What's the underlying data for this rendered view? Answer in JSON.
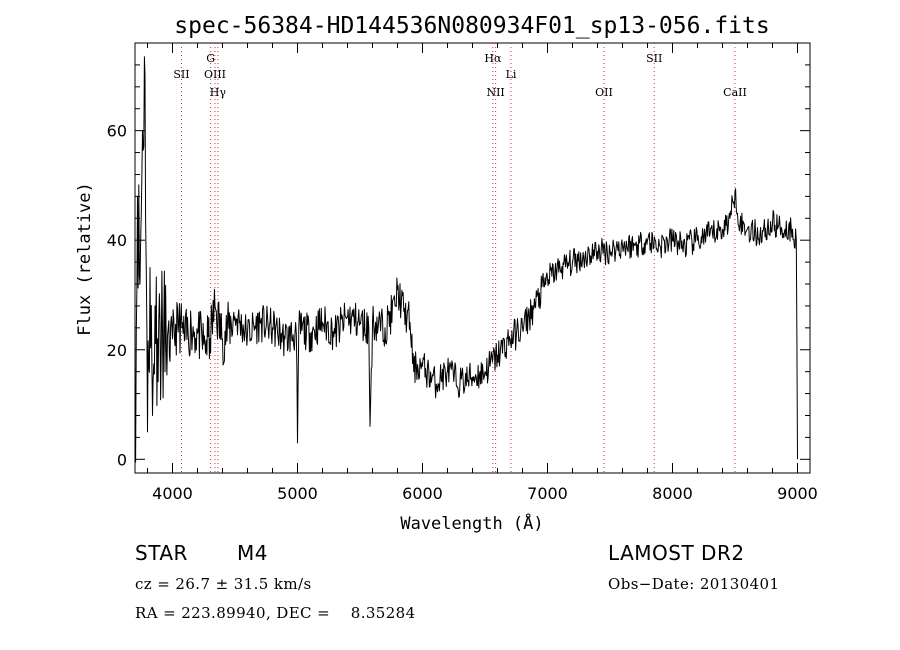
{
  "chart_data": {
    "type": "line",
    "title": "spec-56384-HD144536N080934F01_sp13-056.fits",
    "xlabel": "Wavelength (Å)",
    "ylabel": "Flux (relative)",
    "xlim": [
      3700,
      9100
    ],
    "ylim": [
      -2.5,
      76
    ],
    "x_ticks": [
      4000,
      5000,
      6000,
      7000,
      8000,
      9000
    ],
    "x_tick_labels": [
      "4000",
      "5000",
      "6000",
      "7000",
      "8000",
      "9000"
    ],
    "y_ticks": [
      0,
      20,
      40,
      60
    ],
    "y_tick_labels": [
      "0",
      "20",
      "40",
      "60"
    ],
    "grid": false,
    "series": [
      {
        "color": "#000000",
        "x": [
          3700,
          3720,
          3740,
          3760,
          3780,
          3800,
          3820,
          3840,
          3860,
          3880,
          3900,
          3950,
          4000,
          4050,
          4100,
          4150,
          4200,
          4250,
          4300,
          4340,
          4400,
          4500,
          4600,
          4700,
          4800,
          4900,
          4990,
          5000,
          5010,
          5100,
          5200,
          5300,
          5400,
          5500,
          5570,
          5580,
          5600,
          5700,
          5780,
          5800,
          5850,
          5900,
          5930,
          5950,
          6000,
          6100,
          6200,
          6300,
          6400,
          6500,
          6600,
          6700,
          6800,
          6900,
          7000,
          7100,
          7200,
          7300,
          7400,
          7500,
          7600,
          7700,
          7800,
          7900,
          8000,
          8100,
          8200,
          8300,
          8400,
          8460,
          8500,
          8540,
          8600,
          8700,
          8800,
          8900,
          8960,
          8990,
          9000
        ],
        "y": [
          2,
          48,
          32,
          60,
          70,
          5,
          35,
          8,
          28,
          22,
          25,
          20,
          22,
          25,
          22,
          24,
          23,
          21,
          22,
          28,
          22,
          26,
          23,
          25,
          24,
          22,
          23,
          3,
          24,
          23,
          25,
          23,
          26,
          25,
          24,
          6,
          25,
          24,
          28,
          31,
          27,
          25,
          16,
          17,
          17,
          14,
          16,
          14,
          15,
          16,
          19,
          22,
          24,
          28,
          33,
          35,
          36,
          37,
          38,
          38,
          39,
          39,
          40,
          39,
          40,
          39,
          40,
          41,
          42,
          44,
          49,
          43,
          42,
          41,
          43,
          42,
          42,
          40,
          0
        ]
      }
    ],
    "lines": [
      {
        "label": "SII",
        "x": 4072
      },
      {
        "label": "G",
        "x": 4305
      },
      {
        "label": "OIII",
        "x": 4340
      },
      {
        "label": "Hγ",
        "x": 4363
      },
      {
        "label": "Hα",
        "x": 6563
      },
      {
        "label": "NII",
        "x": 6585
      },
      {
        "label": "Li",
        "x": 6708
      },
      {
        "label": "OII",
        "x": 7452
      },
      {
        "label": "SII",
        "x": 7854
      },
      {
        "label": "CaII",
        "x": 8500
      }
    ]
  },
  "info": {
    "object_type": "STAR",
    "subclass": "M4",
    "survey": "LAMOST DR2",
    "cz": "cz = 26.7 ± 31.5 km/s",
    "obs_date": "Obs−Date: 20130401",
    "coords": "RA = 223.89940, DEC =    8.35284"
  }
}
